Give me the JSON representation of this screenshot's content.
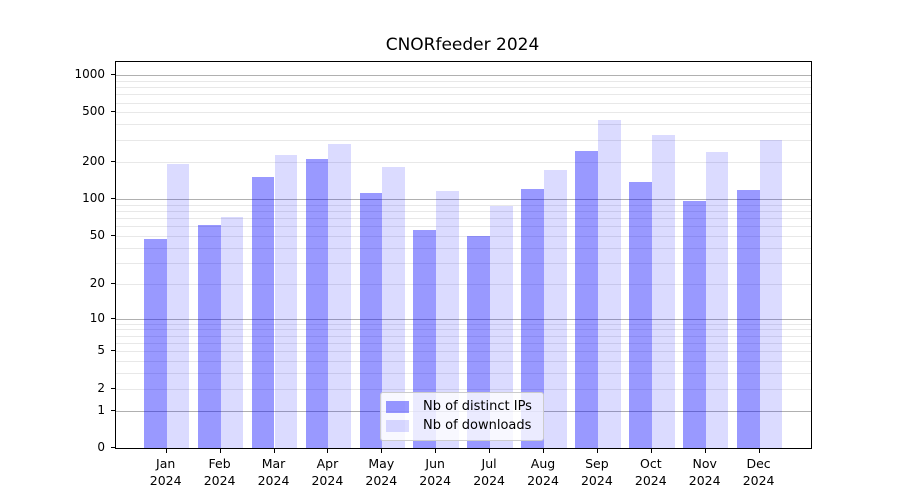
{
  "title": "CNORfeeder 2024",
  "colors": {
    "bar_distinct_ips": "rgba(0,0,255,0.40)",
    "bar_downloads": "rgba(0,0,255,0.14)",
    "grid_major": "#b0b0b0",
    "grid_minor": "#e8e8e8",
    "spine": "#000000",
    "text": "#000000"
  },
  "legend": {
    "items": [
      {
        "label": "Nb of distinct IPs",
        "series": "distinct_ips"
      },
      {
        "label": "Nb of downloads",
        "series": "downloads"
      }
    ]
  },
  "chart_data": {
    "type": "bar",
    "title": "CNORfeeder 2024",
    "categories": [
      "Jan 2024",
      "Feb 2024",
      "Mar 2024",
      "Apr 2024",
      "May 2024",
      "Jun 2024",
      "Jul 2024",
      "Aug 2024",
      "Sep 2024",
      "Oct 2024",
      "Nov 2024",
      "Dec 2024"
    ],
    "series": [
      {
        "name": "Nb of distinct IPs",
        "values": [
          47,
          61,
          150,
          211,
          111,
          56,
          50,
          121,
          246,
          137,
          96,
          118
        ]
      },
      {
        "name": "Nb of downloads",
        "values": [
          192,
          71,
          225,
          280,
          181,
          116,
          88,
          172,
          436,
          327,
          240,
          301
        ]
      }
    ],
    "xlabel": "",
    "ylabel": "",
    "yscale": "log1p",
    "yticks": [
      0,
      1,
      2,
      5,
      10,
      20,
      50,
      100,
      200,
      500,
      1000
    ],
    "ylim": [
      0,
      1273
    ],
    "grid": true,
    "legend_position": "lower center"
  }
}
